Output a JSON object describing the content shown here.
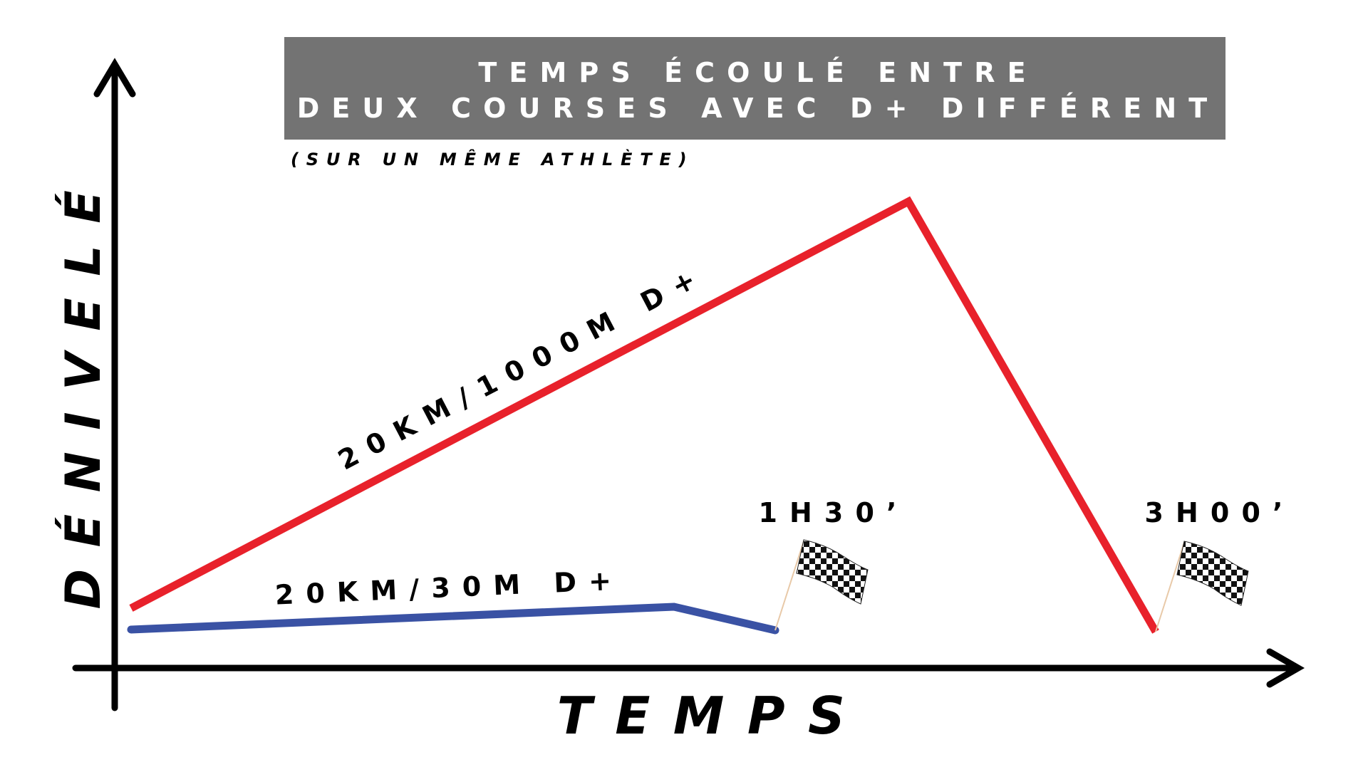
{
  "header": {
    "title_lines": [
      "TEMPS ÉCOULÉ ENTRE",
      "DEUX COURSES AVEC D+ DIFFÉRENT"
    ],
    "subtitle": "(SUR UN MÊME ATHLÈTE)"
  },
  "axes": {
    "y_label": "DÉNIVELÉ",
    "x_label": "TEMPS"
  },
  "routes": [
    {
      "label": "20KM/1000M D+",
      "time": "3H00’"
    },
    {
      "label": "20KM/30M D+",
      "time": "1H30’"
    }
  ]
}
